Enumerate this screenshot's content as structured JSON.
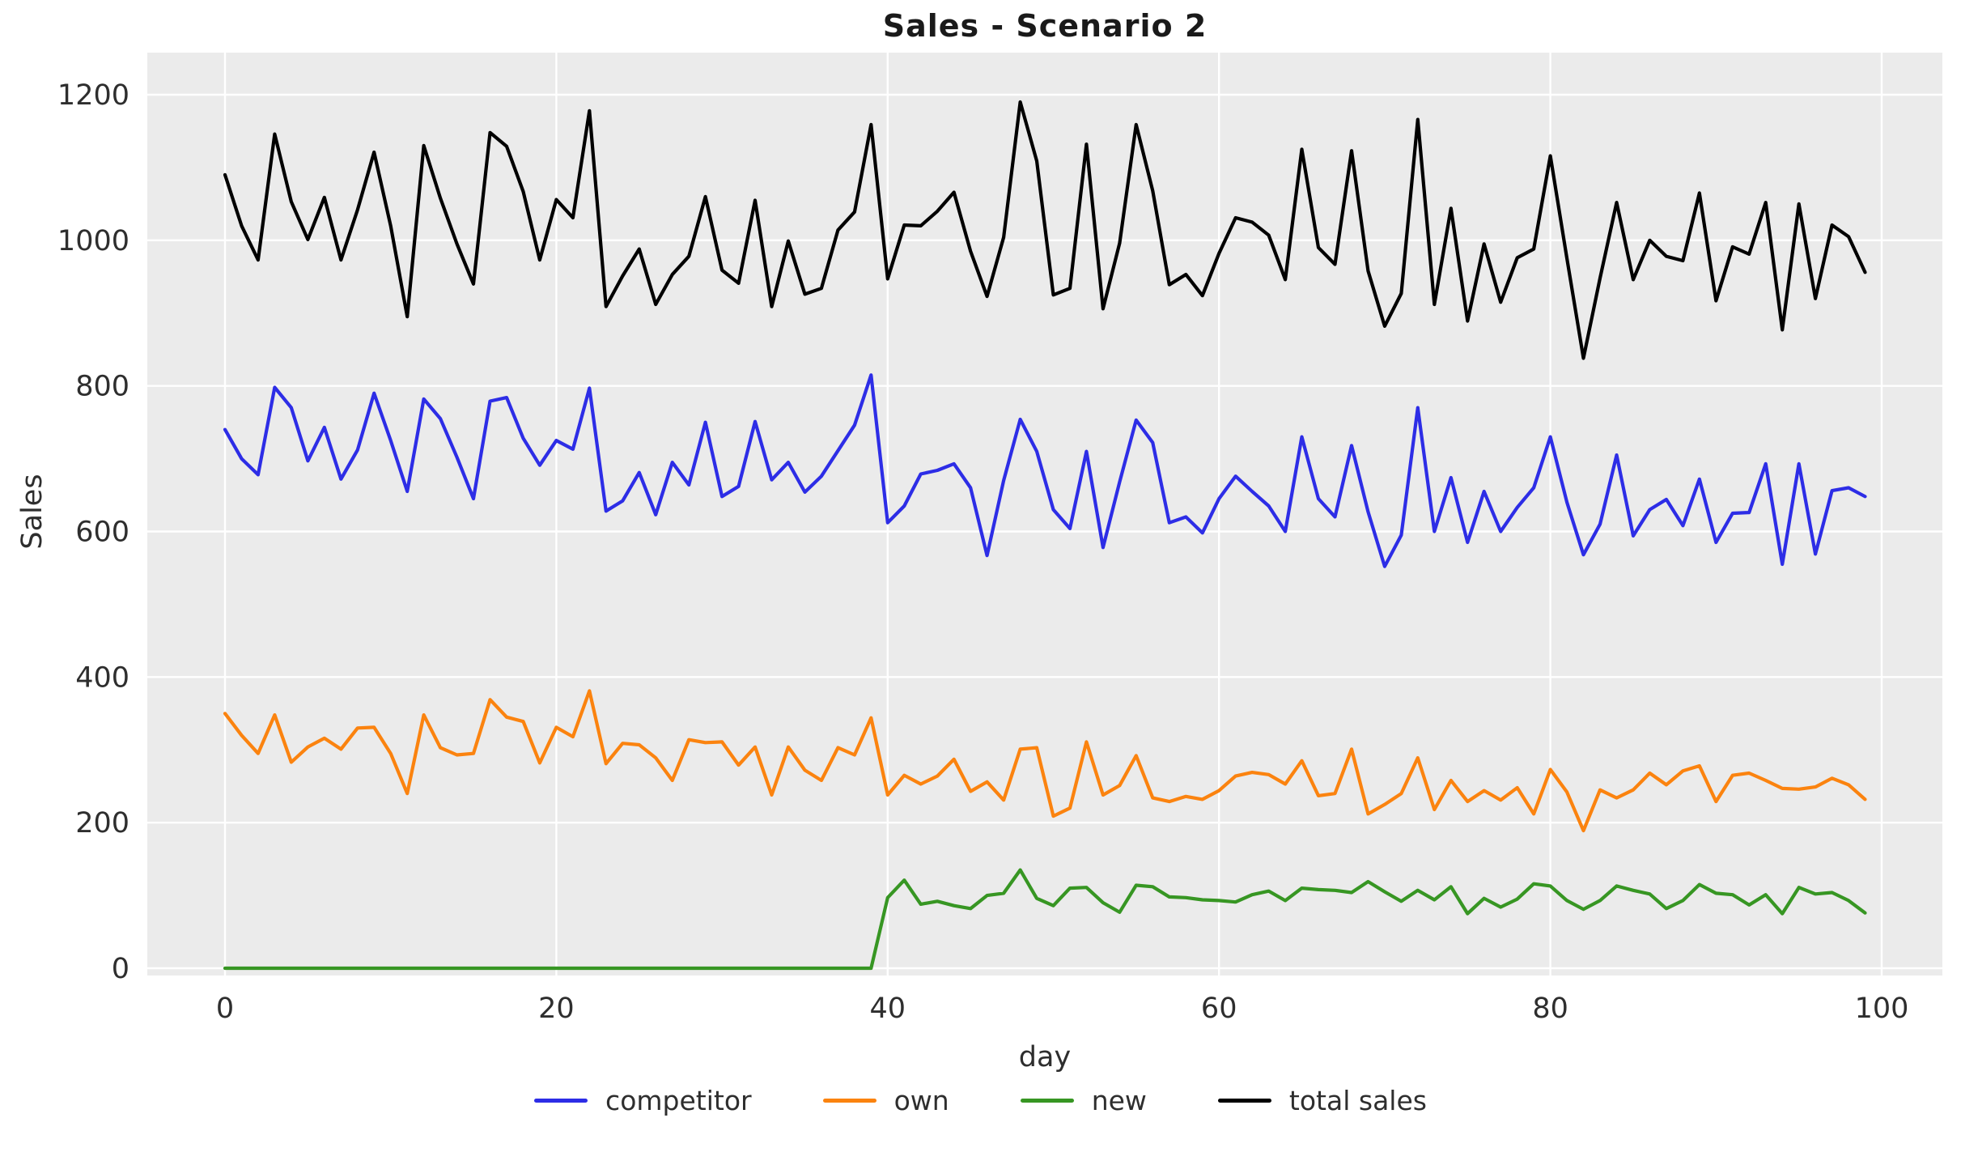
{
  "title": "Sales - Scenario 2",
  "chart_data": {
    "type": "line",
    "title": "Sales - Scenario 2",
    "xlabel": "day",
    "ylabel": "Sales",
    "x_ticks": [
      0,
      20,
      40,
      60,
      80,
      100
    ],
    "y_ticks": [
      0,
      200,
      400,
      600,
      800,
      1000,
      1200
    ],
    "x_range": [
      -4.7,
      103.7
    ],
    "y_range": [
      -10,
      1262
    ],
    "grid": true,
    "legend_position": "bottom",
    "plot_background": "#ebebeb",
    "grid_color": "#ffffff",
    "x": [
      0,
      1,
      2,
      3,
      4,
      5,
      6,
      7,
      8,
      9,
      10,
      11,
      12,
      13,
      14,
      15,
      16,
      17,
      18,
      19,
      20,
      21,
      22,
      23,
      24,
      25,
      26,
      27,
      28,
      29,
      30,
      31,
      32,
      33,
      34,
      35,
      36,
      37,
      38,
      39,
      40,
      41,
      42,
      43,
      44,
      45,
      46,
      47,
      48,
      49,
      50,
      51,
      52,
      53,
      54,
      55,
      56,
      57,
      58,
      59,
      60,
      61,
      62,
      63,
      64,
      65,
      66,
      67,
      68,
      69,
      70,
      71,
      72,
      73,
      74,
      75,
      76,
      77,
      78,
      79,
      80,
      81,
      82,
      83,
      84,
      85,
      86,
      87,
      88,
      89,
      90,
      91,
      92,
      93,
      94,
      95,
      96,
      97,
      98,
      99
    ],
    "series": [
      {
        "name": "competitor",
        "color": "#2d2de6",
        "values": [
          740,
          700,
          678,
          798,
          770,
          697,
          743,
          672,
          712,
          790,
          725,
          655,
          782,
          755,
          702,
          645,
          779,
          784,
          728,
          691,
          725,
          713,
          797,
          628,
          642,
          681,
          623,
          695,
          664,
          750,
          648,
          662,
          751,
          671,
          695,
          654,
          676,
          711,
          746,
          815,
          612,
          635,
          679,
          684,
          693,
          660,
          567,
          670,
          754,
          710,
          630,
          604,
          710,
          578,
          668,
          753,
          722,
          612,
          620,
          598,
          645,
          676,
          655,
          635,
          600,
          730,
          645,
          620,
          718,
          627,
          552,
          595,
          770,
          600,
          674,
          585,
          655,
          600,
          633,
          660,
          730,
          640,
          568,
          610,
          705,
          594,
          630,
          644,
          608,
          672,
          585,
          625,
          626,
          693,
          555,
          693,
          569,
          656,
          660,
          648
        ]
      },
      {
        "name": "own",
        "color": "#fb830f",
        "values": [
          350,
          320,
          295,
          348,
          283,
          304,
          316,
          301,
          330,
          331,
          295,
          240,
          348,
          303,
          293,
          295,
          369,
          345,
          339,
          282,
          331,
          318,
          381,
          281,
          309,
          307,
          289,
          258,
          314,
          310,
          311,
          279,
          304,
          238,
          304,
          272,
          258,
          303,
          293,
          344,
          238,
          265,
          253,
          264,
          287,
          243,
          256,
          231,
          301,
          303,
          209,
          220,
          311,
          238,
          251,
          292,
          234,
          229,
          236,
          232,
          244,
          264,
          269,
          266,
          253,
          285,
          237,
          240,
          301,
          212,
          225,
          240,
          289,
          218,
          258,
          229,
          244,
          231,
          248,
          212,
          273,
          242,
          189,
          245,
          234,
          245,
          268,
          252,
          271,
          278,
          229,
          265,
          268,
          258,
          247,
          246,
          249,
          261,
          252,
          232
        ]
      },
      {
        "name": "new",
        "color": "#379623",
        "values": [
          0,
          0,
          0,
          0,
          0,
          0,
          0,
          0,
          0,
          0,
          0,
          0,
          0,
          0,
          0,
          0,
          0,
          0,
          0,
          0,
          0,
          0,
          0,
          0,
          0,
          0,
          0,
          0,
          0,
          0,
          0,
          0,
          0,
          0,
          0,
          0,
          0,
          0,
          0,
          0,
          97,
          121,
          88,
          92,
          86,
          82,
          100,
          103,
          135,
          96,
          86,
          110,
          111,
          90,
          77,
          114,
          112,
          98,
          97,
          94,
          93,
          91,
          101,
          106,
          93,
          110,
          108,
          107,
          104,
          119,
          105,
          92,
          107,
          94,
          112,
          75,
          96,
          84,
          95,
          116,
          113,
          93,
          81,
          93,
          113,
          107,
          102,
          82,
          93,
          115,
          103,
          101,
          87,
          101,
          75,
          111,
          102,
          104,
          93,
          76
        ]
      },
      {
        "name": "total sales",
        "color": "#000000",
        "values": [
          1090,
          1020,
          973,
          1146,
          1053,
          1001,
          1059,
          973,
          1042,
          1121,
          1020,
          895,
          1130,
          1058,
          995,
          940,
          1148,
          1129,
          1067,
          973,
          1056,
          1031,
          1178,
          909,
          951,
          988,
          912,
          953,
          978,
          1060,
          959,
          941,
          1055,
          909,
          999,
          926,
          934,
          1014,
          1039,
          1159,
          947,
          1021,
          1020,
          1040,
          1066,
          985,
          923,
          1004,
          1190,
          1109,
          925,
          934,
          1132,
          906,
          996,
          1159,
          1068,
          939,
          953,
          924,
          982,
          1031,
          1025,
          1007,
          946,
          1125,
          990,
          967,
          1123,
          958,
          882,
          927,
          1166,
          912,
          1044,
          889,
          995,
          915,
          976,
          988,
          1116,
          975,
          838,
          948,
          1052,
          946,
          1000,
          978,
          972,
          1065,
          917,
          991,
          981,
          1052,
          877,
          1050,
          920,
          1021,
          1005,
          956
        ]
      }
    ]
  },
  "legend": {
    "entries": [
      "competitor",
      "own",
      "new",
      "total sales"
    ]
  }
}
